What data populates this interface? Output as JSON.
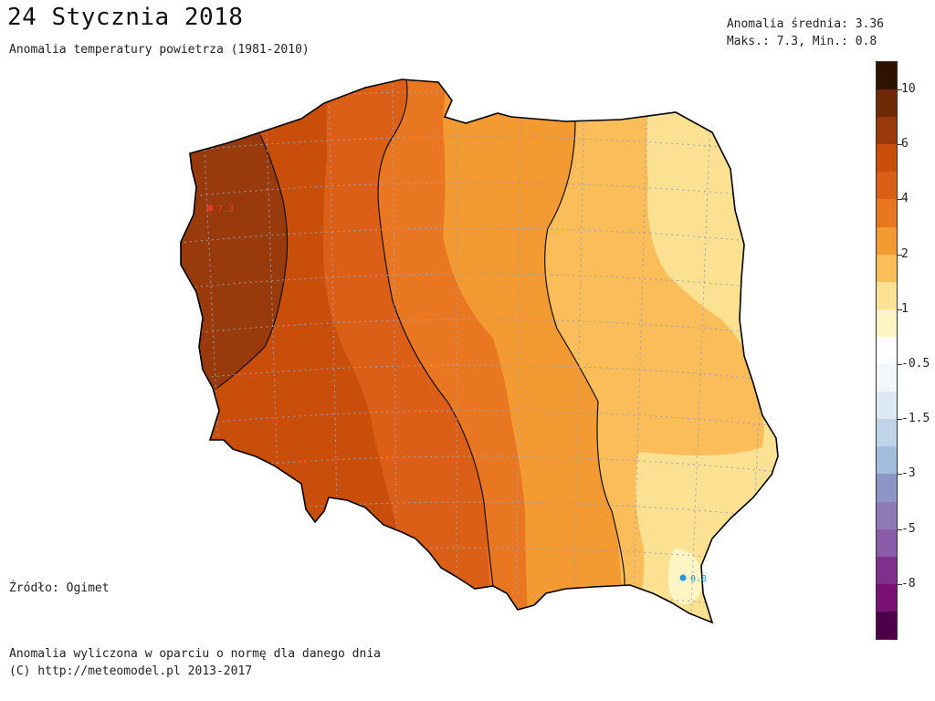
{
  "header": {
    "title": "24 Stycznia 2018",
    "subtitle": "Anomalia temperatury powietrza (1981-2010)"
  },
  "stats": {
    "mean_line": "Anomalia średnia: 3.36",
    "maxmin_line": "Maks.: 7.3, Min.: 0.8"
  },
  "source": "Źródło: Ogimet",
  "footer": {
    "line1": "Anomalia wyliczona w oparciu o normę dla danego dnia",
    "line2": "(C) http://meteomodel.pl 2013-2017"
  },
  "markers": {
    "max": {
      "label": "7.3",
      "color": "#e8372c"
    },
    "min": {
      "label": "0.8",
      "color": "#1e96e6"
    }
  },
  "colorbar": {
    "segments": [
      "#2e1300",
      "#6e2a07",
      "#983a0c",
      "#c84e0a",
      "#dc5f18",
      "#e97721",
      "#f39a33",
      "#fbbd5a",
      "#fde193",
      "#fff4c4",
      "#ffffff",
      "#f2f7fb",
      "#dde9f2",
      "#c0d3e8",
      "#a2bedc",
      "#8b96c7",
      "#8d7ab6",
      "#8a5ba6",
      "#7f2f8c",
      "#7a0f74",
      "#4d0049"
    ],
    "tick_labels": [
      "10",
      "6",
      "4",
      "2",
      "1",
      "-0.5",
      "-1.5",
      "-3",
      "-5",
      "-8"
    ]
  },
  "map_colors": {
    "c7": "#983a0c",
    "c6": "#c84e0a",
    "c5": "#dc5f18",
    "c4": "#e97721",
    "c3": "#f39a33",
    "c2": "#fbbd5a",
    "c1": "#fde193",
    "c0": "#fff4c4"
  }
}
